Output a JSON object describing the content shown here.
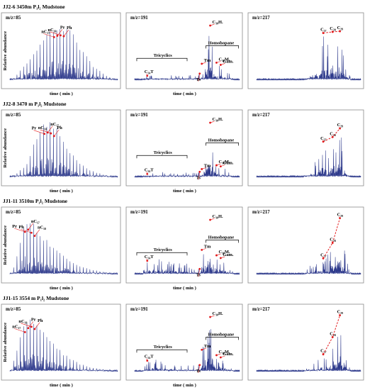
{
  "chart_data": [
    {
      "row": 0,
      "title": "JJ2-6   3450m   P₁l₂   Mudstone",
      "panels": [
        {
          "type": "line",
          "mz": "m/z=85",
          "ylabel": "Relative abundance",
          "xlabel": "time ( min )",
          "peak_labels": [
            "nC₁₇",
            "Pr",
            "nC₁₈",
            "Ph"
          ],
          "x": [
            0.05,
            0.08,
            0.11,
            0.14,
            0.17,
            0.2,
            0.23,
            0.26,
            0.29,
            0.32,
            0.35,
            0.38,
            0.41,
            0.44,
            0.47,
            0.5,
            0.53,
            0.56,
            0.59,
            0.62,
            0.65,
            0.68,
            0.71,
            0.74,
            0.77,
            0.8,
            0.83,
            0.86,
            0.89,
            0.92
          ],
          "values": [
            0.05,
            0.15,
            0.22,
            0.3,
            0.35,
            0.4,
            0.5,
            0.62,
            0.7,
            0.78,
            0.85,
            0.92,
            0.96,
            0.99,
            1.0,
            0.98,
            0.94,
            0.88,
            0.8,
            0.7,
            0.6,
            0.5,
            0.42,
            0.34,
            0.27,
            0.22,
            0.17,
            0.13,
            0.09,
            0.06
          ]
        },
        {
          "type": "line",
          "mz": "m/z=191",
          "xlabel": "time ( min )",
          "peak_labels": [
            "C₂₄T",
            "Ts",
            "Tm",
            "C₃₀H.",
            "C₃₀M.",
            "Gam."
          ],
          "group_labels": [
            "Tricyclics",
            "Homohopane"
          ],
          "x": [
            0.12,
            0.2,
            0.28,
            0.4,
            0.48,
            0.62,
            0.64,
            0.72,
            0.76,
            0.78,
            0.82,
            0.86,
            0.9
          ],
          "values": [
            0.08,
            0.1,
            0.12,
            0.09,
            0.1,
            0.12,
            0.3,
            1.0,
            0.4,
            0.32,
            0.28,
            0.22,
            0.16
          ]
        },
        {
          "type": "line",
          "mz": "m/z=217",
          "peak_labels": [
            "C₂₇",
            "C₂₈",
            "C₂₉"
          ],
          "x": [
            0.5,
            0.55,
            0.6,
            0.64,
            0.7,
            0.73,
            0.76,
            0.8,
            0.86
          ],
          "values": [
            0.2,
            0.35,
            0.5,
            0.82,
            0.6,
            0.84,
            0.55,
            0.85,
            0.3
          ]
        }
      ]
    },
    {
      "row": 1,
      "title": "JJ2-8   3470 m   P₁l₂   Mudstone",
      "panels": [
        {
          "type": "line",
          "mz": "m/z=85",
          "ylabel": "Relative abundance",
          "xlabel": "time ( min )",
          "peak_labels": [
            "Pr",
            "nC₁₇",
            "nC₁₈",
            "Ph"
          ],
          "x": [
            0.05,
            0.08,
            0.11,
            0.14,
            0.17,
            0.2,
            0.23,
            0.26,
            0.29,
            0.32,
            0.35,
            0.38,
            0.41,
            0.44,
            0.47,
            0.5,
            0.53,
            0.56,
            0.59,
            0.62,
            0.65,
            0.68,
            0.71,
            0.74,
            0.77,
            0.8,
            0.83,
            0.86,
            0.89
          ],
          "values": [
            0.05,
            0.1,
            0.15,
            0.2,
            0.3,
            0.45,
            0.65,
            0.8,
            0.9,
            0.97,
            1.0,
            0.98,
            0.92,
            0.85,
            0.76,
            0.66,
            0.57,
            0.48,
            0.4,
            0.33,
            0.27,
            0.22,
            0.18,
            0.14,
            0.11,
            0.09,
            0.07,
            0.05,
            0.04
          ]
        },
        {
          "type": "line",
          "mz": "m/z=191",
          "xlabel": "time ( min )",
          "peak_labels": [
            "C₂₄T",
            "Ts",
            "Tm",
            "C₃₀H.",
            "C₃₀M.",
            "Gam."
          ],
          "group_labels": [
            "Tricyclics",
            "Homohopane"
          ],
          "x": [
            0.12,
            0.2,
            0.28,
            0.4,
            0.48,
            0.62,
            0.64,
            0.72,
            0.76,
            0.78,
            0.82,
            0.86,
            0.9
          ],
          "values": [
            0.06,
            0.08,
            0.1,
            0.07,
            0.08,
            0.1,
            0.15,
            1.0,
            0.45,
            0.22,
            0.2,
            0.16,
            0.12
          ]
        },
        {
          "type": "line",
          "mz": "m/z=217",
          "peak_labels": [
            "C₂₇",
            "C₂₈",
            "C₂₉"
          ],
          "x": [
            0.5,
            0.55,
            0.6,
            0.64,
            0.7,
            0.73,
            0.76,
            0.8,
            0.86
          ],
          "values": [
            0.18,
            0.3,
            0.45,
            0.62,
            0.42,
            0.7,
            0.5,
            0.85,
            0.25
          ]
        }
      ]
    },
    {
      "row": 2,
      "title": "JJ1-11   3510m   P₁l₂   Mudstone",
      "panels": [
        {
          "type": "line",
          "mz": "m/z=85",
          "ylabel": "Relative abundance",
          "xlabel": "time ( min )",
          "peak_labels": [
            "Pr",
            "nC₁₇",
            "Ph",
            "nC₁₈"
          ],
          "x": [
            0.05,
            0.08,
            0.11,
            0.14,
            0.17,
            0.2,
            0.23,
            0.26,
            0.29,
            0.32,
            0.35,
            0.38,
            0.41,
            0.44,
            0.47,
            0.5,
            0.53,
            0.56,
            0.59,
            0.62,
            0.65,
            0.68,
            0.71,
            0.74,
            0.77,
            0.8,
            0.83,
            0.86,
            0.89
          ],
          "values": [
            0.2,
            0.45,
            0.75,
            0.95,
            1.0,
            0.93,
            0.86,
            0.8,
            0.72,
            0.66,
            0.6,
            0.54,
            0.48,
            0.43,
            0.38,
            0.33,
            0.29,
            0.25,
            0.22,
            0.19,
            0.16,
            0.14,
            0.12,
            0.1,
            0.08,
            0.07,
            0.06,
            0.05,
            0.04
          ]
        },
        {
          "type": "line",
          "mz": "m/z=191",
          "xlabel": "time ( min )",
          "peak_labels": [
            "C₂₄T",
            "Ts",
            "Tm",
            "C₃₀H.",
            "C₃₀M.",
            "Gam."
          ],
          "group_labels": [
            "Tricyclics",
            "Homohopane"
          ],
          "x": [
            0.12,
            0.2,
            0.28,
            0.4,
            0.48,
            0.62,
            0.64,
            0.72,
            0.76,
            0.78,
            0.82,
            0.86,
            0.9
          ],
          "values": [
            0.25,
            0.3,
            0.28,
            0.2,
            0.22,
            0.1,
            0.45,
            1.0,
            0.55,
            0.35,
            0.3,
            0.22,
            0.16
          ]
        },
        {
          "type": "line",
          "mz": "m/z=217",
          "peak_labels": [
            "C₂₇",
            "C₂₈",
            "C₂₉"
          ],
          "x": [
            0.5,
            0.55,
            0.6,
            0.64,
            0.7,
            0.73,
            0.76,
            0.8,
            0.86
          ],
          "values": [
            0.15,
            0.2,
            0.26,
            0.28,
            0.4,
            0.55,
            0.45,
            0.98,
            0.3
          ]
        }
      ]
    },
    {
      "row": 3,
      "title": "JJ1-15   3554 m   P₁l₂   Mudstone",
      "panels": [
        {
          "type": "line",
          "mz": "m/z=85",
          "ylabel": "Relative abundance",
          "xlabel": "time ( min )",
          "peak_labels": [
            "nC₁₇",
            "Pr",
            "nC₁₈",
            "Ph"
          ],
          "x": [
            0.05,
            0.08,
            0.11,
            0.14,
            0.17,
            0.2,
            0.23,
            0.26,
            0.29,
            0.32,
            0.35,
            0.38,
            0.41,
            0.44,
            0.47,
            0.5,
            0.53,
            0.56,
            0.59,
            0.62,
            0.65,
            0.68,
            0.71,
            0.74,
            0.77,
            0.8,
            0.83,
            0.86,
            0.89
          ],
          "values": [
            0.3,
            0.5,
            0.7,
            0.88,
            0.97,
            1.0,
            0.95,
            0.88,
            0.8,
            0.72,
            0.64,
            0.56,
            0.49,
            0.43,
            0.37,
            0.32,
            0.27,
            0.23,
            0.2,
            0.17,
            0.14,
            0.12,
            0.1,
            0.08,
            0.07,
            0.06,
            0.05,
            0.04,
            0.03
          ]
        },
        {
          "type": "line",
          "mz": "m/z=191",
          "xlabel": "time ( min )",
          "peak_labels": [
            "C₂₄T",
            "Ts",
            "Tm",
            "C₃₀H.",
            "C₃₀M.",
            "Gam."
          ],
          "group_labels": [
            "Tricyclics",
            "Homohopane"
          ],
          "x": [
            0.12,
            0.2,
            0.28,
            0.4,
            0.48,
            0.62,
            0.64,
            0.72,
            0.76,
            0.78,
            0.82,
            0.86,
            0.9
          ],
          "values": [
            0.2,
            0.22,
            0.18,
            0.12,
            0.14,
            0.12,
            0.4,
            1.0,
            0.5,
            0.3,
            0.26,
            0.2,
            0.14
          ]
        },
        {
          "type": "line",
          "mz": "m/z=217",
          "peak_labels": [
            "C₂₇",
            "C₂₈",
            "C₂₉"
          ],
          "x": [
            0.5,
            0.55,
            0.6,
            0.64,
            0.7,
            0.73,
            0.76,
            0.8,
            0.86
          ],
          "values": [
            0.12,
            0.18,
            0.25,
            0.3,
            0.38,
            0.6,
            0.48,
            0.98,
            0.3
          ]
        }
      ]
    }
  ],
  "colors": {
    "trace": "#2e3a8c",
    "marker": "#e31a1c",
    "frame": "#8a8a8a"
  }
}
